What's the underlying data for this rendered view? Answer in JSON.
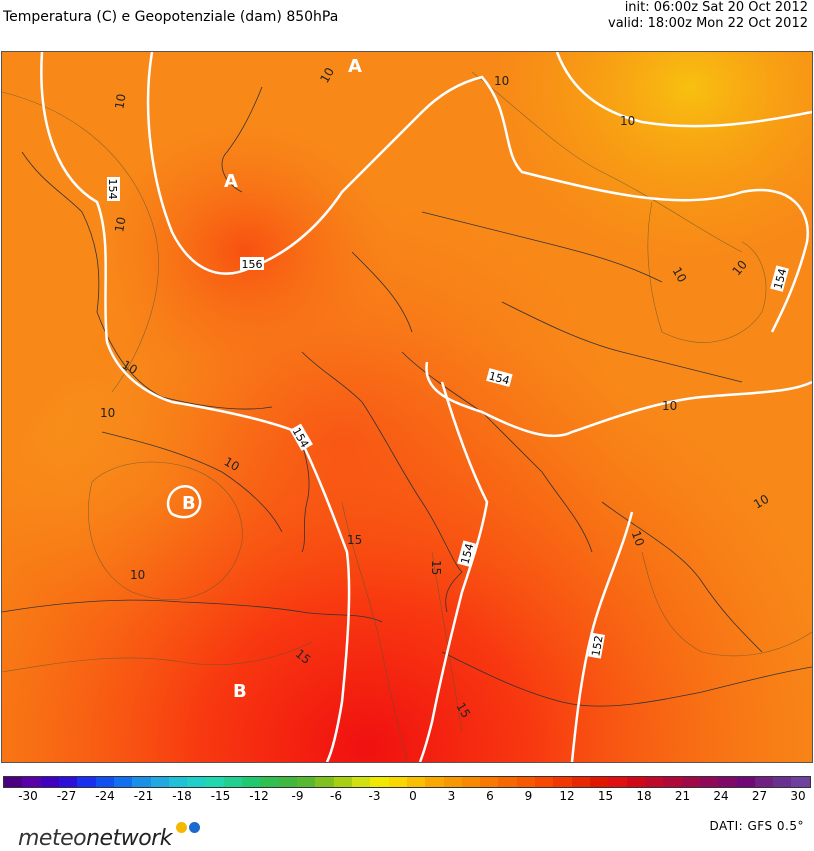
{
  "header": {
    "title": "Temperatura (C) e Geopotenziale (dam) 850hPa",
    "init": "init: 06:00z Sat 20 Oct 2012",
    "valid": "valid: 18:00z Mon 22 Oct 2012"
  },
  "map": {
    "pressure_labels": [
      "A",
      "A",
      "B",
      "B"
    ],
    "geopotential_labels": [
      "154",
      "156",
      "154",
      "154",
      "154",
      "152",
      "154"
    ],
    "temperature_labels": [
      "10",
      "10",
      "10",
      "10",
      "10",
      "10",
      "10",
      "10",
      "10",
      "10",
      "10",
      "10",
      "15",
      "15",
      "15",
      "15",
      "10",
      "10"
    ]
  },
  "colorbar": {
    "ticks": [
      "-30",
      "-27",
      "-24",
      "-21",
      "-18",
      "-15",
      "-12",
      "-9",
      "-6",
      "-3",
      "0",
      "3",
      "6",
      "9",
      "12",
      "15",
      "18",
      "21",
      "24",
      "27",
      "30"
    ],
    "colors": [
      "#4b0082",
      "#5a00a8",
      "#4000c0",
      "#2a10d8",
      "#1a30f0",
      "#1050f0",
      "#1070f0",
      "#1890e8",
      "#20a8e0",
      "#20c0d8",
      "#20d0c8",
      "#20d8b0",
      "#20d090",
      "#20c870",
      "#30c050",
      "#40b840",
      "#58b830",
      "#80c020",
      "#a8d010",
      "#d0e010",
      "#f0e800",
      "#f8d800",
      "#f8c000",
      "#f8a800",
      "#f89800",
      "#f88800",
      "#f87800",
      "#f86800",
      "#f85800",
      "#f84800",
      "#f03800",
      "#e82800",
      "#e01800",
      "#e01010",
      "#d00818",
      "#c00828",
      "#b00838",
      "#a00848",
      "#900858",
      "#800868",
      "#700878",
      "#702080",
      "#6a3090",
      "#7040a0"
    ]
  },
  "footer": {
    "logo_a": "meteo",
    "logo_b": "network",
    "dati": "DATI:  GFS  0.5°"
  }
}
